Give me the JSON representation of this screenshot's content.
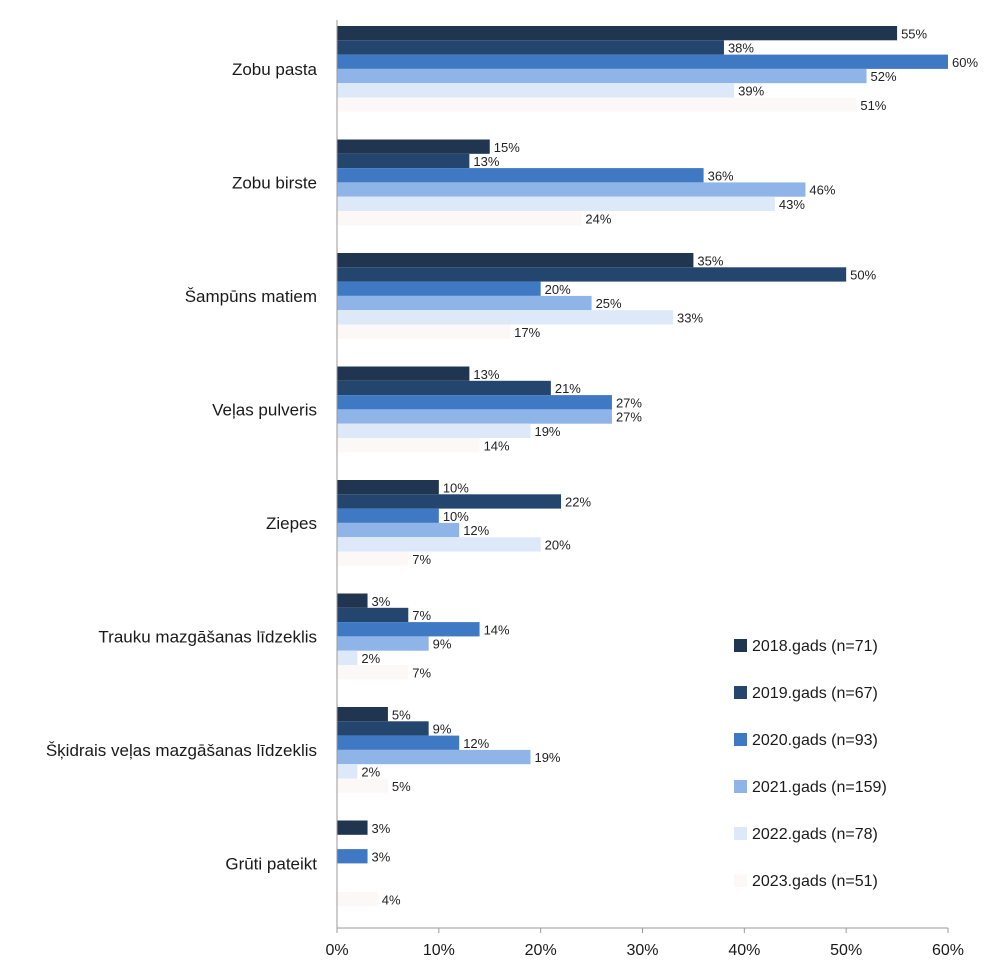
{
  "chart_data": {
    "type": "bar",
    "orientation": "horizontal",
    "categories": [
      "Zobu pasta",
      "Zobu birste",
      "Šampūns matiem",
      "Veļas pulveris",
      "Ziepes",
      "Trauku mazgāšanas līdzeklis",
      "Šķidrais veļas mazgāšanas līdzeklis",
      "Grūti pateikt"
    ],
    "series": [
      {
        "name": "2018.gads (n=71)",
        "color": "#1f3550",
        "values": [
          55,
          15,
          35,
          13,
          10,
          3,
          5,
          3
        ],
        "labels": [
          "55%",
          "15%",
          "35%",
          "13%",
          "10%",
          "3%",
          "5%",
          "3%"
        ]
      },
      {
        "name": "2019.gads (n=67)",
        "color": "#24456e",
        "values": [
          38,
          13,
          50,
          21,
          22,
          7,
          9,
          0
        ],
        "labels": [
          "38%",
          "13%",
          "50%",
          "21%",
          "22%",
          "7%",
          "9%",
          ""
        ]
      },
      {
        "name": "2020.gads (n=93)",
        "color": "#3f79c4",
        "values": [
          60,
          36,
          20,
          27,
          10,
          14,
          12,
          3
        ],
        "labels": [
          "60%",
          "36%",
          "20%",
          "27%",
          "10%",
          "14%",
          "12%",
          "3%"
        ]
      },
      {
        "name": "2021.gads (n=159)",
        "color": "#8fb4e8",
        "values": [
          52,
          46,
          25,
          27,
          12,
          9,
          19,
          0
        ],
        "labels": [
          "52%",
          "46%",
          "25%",
          "27%",
          "12%",
          "9%",
          "19%",
          ""
        ]
      },
      {
        "name": "2022.gads (n=78)",
        "color": "#dde9f8",
        "values": [
          39,
          43,
          33,
          19,
          20,
          2,
          2,
          0
        ],
        "labels": [
          "39%",
          "43%",
          "33%",
          "19%",
          "20%",
          "2%",
          "2%",
          ""
        ]
      },
      {
        "name": "2023.gads (n=51)",
        "color": "#fdf8f8",
        "values": [
          51,
          24,
          17,
          14,
          7,
          7,
          5,
          4
        ],
        "labels": [
          "51%",
          "24%",
          "17%",
          "14%",
          "7%",
          "7%",
          "5%",
          "4%"
        ]
      }
    ],
    "xlim": [
      0,
      60
    ],
    "xticks": [
      "0%",
      "10%",
      "20%",
      "30%",
      "40%",
      "50%",
      "60%"
    ],
    "grid": false,
    "legend_position": "right"
  }
}
